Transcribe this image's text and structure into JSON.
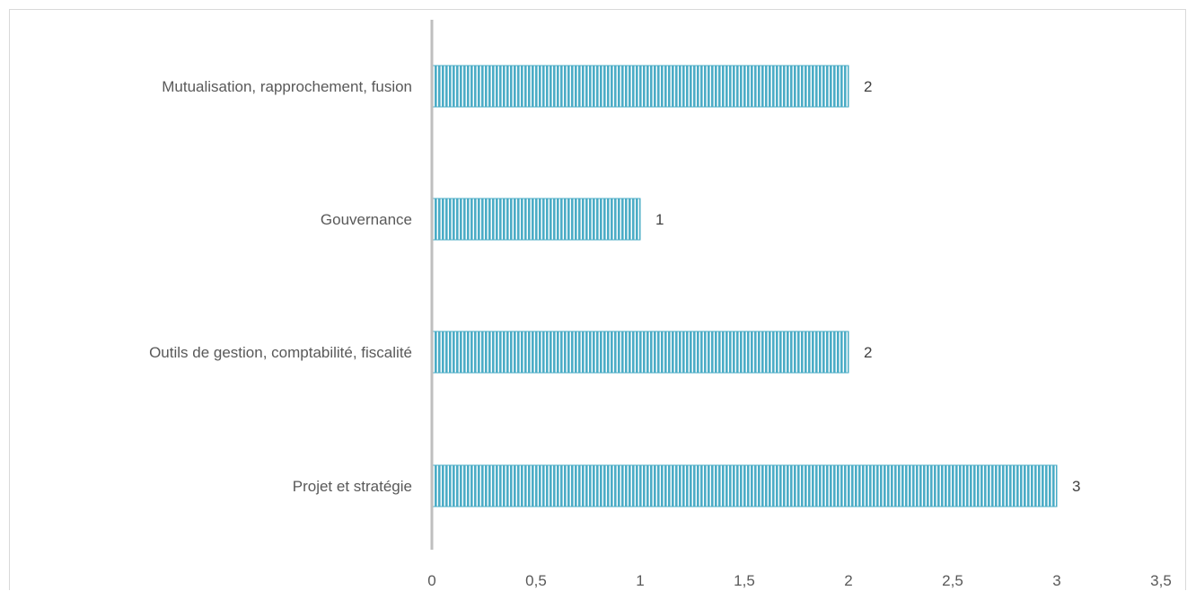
{
  "chart_data": {
    "type": "bar",
    "orientation": "horizontal",
    "categories": [
      "Mutualisation, rapprochement, fusion",
      "Gouvernance",
      "Outils de gestion, comptabilité, fiscalité",
      "Projet et stratégie"
    ],
    "values": [
      2,
      1,
      2,
      3
    ],
    "data_labels": [
      "2",
      "1",
      "2",
      "3"
    ],
    "xlim": [
      0,
      3.5
    ],
    "x_ticks": [
      0,
      0.5,
      1,
      1.5,
      2,
      2.5,
      3,
      3.5
    ],
    "x_tick_labels": [
      "0",
      "0,5",
      "1",
      "1,5",
      "2",
      "2,5",
      "3",
      "3,5"
    ],
    "bar_color": "#4bacc6",
    "bar_pattern": "vertical-stripes",
    "grid": false,
    "legend": "none",
    "title": "",
    "xlabel": "",
    "ylabel": ""
  }
}
